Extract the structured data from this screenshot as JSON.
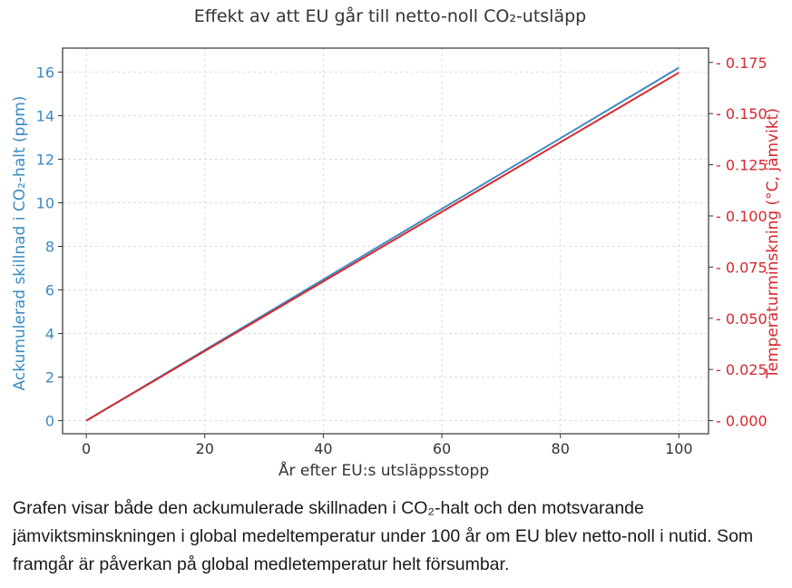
{
  "chart_data": {
    "type": "line",
    "title": "Effekt av att EU går till netto-noll CO₂-utsläpp",
    "xlabel": "År efter EU:s utsläppsstopp",
    "ylabel_left": "Ackumulerad skillnad i CO₂-halt (ppm)",
    "ylabel_right": "Temperaturminskning (°C, jämvikt)",
    "xlim": [
      -4,
      105
    ],
    "ylim_left": [
      -0.6,
      17.1
    ],
    "ylim_right": [
      -0.0064,
      0.182
    ],
    "x_ticks": [
      0,
      20,
      40,
      60,
      80,
      100
    ],
    "y_ticks_left": [
      0,
      2,
      4,
      6,
      8,
      10,
      12,
      14,
      16
    ],
    "y_ticks_right": [
      "0.000",
      "0.025",
      "0.050",
      "0.075",
      "0.100",
      "0.125",
      "0.150",
      "0.175"
    ],
    "grid": true,
    "series": [
      {
        "axis": "left",
        "color": "#3b8bc2",
        "x": [
          0,
          100
        ],
        "y": [
          0,
          16.2
        ]
      },
      {
        "axis": "right",
        "color": "#d6282f",
        "x": [
          0,
          100
        ],
        "y": [
          0,
          0.17
        ]
      }
    ]
  },
  "caption": "Grafen visar både den ackumulerade skillnaden i CO₂-halt och den motsvarande jämviktsminskningen i global medeltemperatur under 100 år om EU blev netto-noll i nutid.  Som framgår är påverkan på global medletemperatur helt försumbar."
}
